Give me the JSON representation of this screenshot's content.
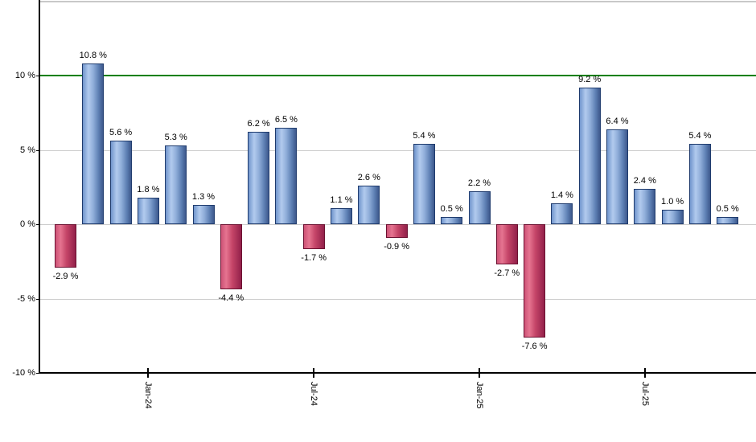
{
  "chart_data": {
    "type": "bar",
    "title": "",
    "xlabel": "",
    "ylabel": "",
    "ylim": [
      -10,
      14.9
    ],
    "grid": "horizontal",
    "legend": "none",
    "values": [
      -2.9,
      10.8,
      5.6,
      1.8,
      5.3,
      1.3,
      -4.4,
      6.2,
      6.5,
      -1.7,
      1.1,
      2.6,
      -0.9,
      5.4,
      0.5,
      2.2,
      -2.7,
      -7.6,
      1.4,
      9.2,
      6.4,
      2.4,
      1.0,
      5.4,
      0.5
    ],
    "bar_labels": [
      "-2.9 %",
      "10.8 %",
      "5.6 %",
      "1.8 %",
      "5.3 %",
      "1.3 %",
      "-4.4 %",
      "6.2 %",
      "6.5 %",
      "-1.7 %",
      "1.1 %",
      "2.6 %",
      "-0.9 %",
      "5.4 %",
      "0.5 %",
      "2.2 %",
      "-2.7 %",
      "-7.6 %",
      "1.4 %",
      "9.2 %",
      "6.4 %",
      "2.4 %",
      "1.0 %",
      "5.4 %",
      "0.5 %"
    ],
    "y_ticks": [
      {
        "value": 10,
        "label": "10 %"
      },
      {
        "value": 5,
        "label": "5 %"
      },
      {
        "value": 0,
        "label": "0 %"
      },
      {
        "value": -5,
        "label": "-5 %"
      },
      {
        "value": -10,
        "label": "-10 %"
      }
    ],
    "x_ticks": [
      {
        "bar_index": 3,
        "label": "Jan-24"
      },
      {
        "bar_index": 9,
        "label": "Jul-24"
      },
      {
        "bar_index": 15,
        "label": "Jan-25"
      },
      {
        "bar_index": 21,
        "label": "Jul-25"
      }
    ],
    "reference_line": {
      "value": 10
    }
  },
  "style": {
    "positive_bar": {
      "border": "#1f3b6d",
      "gradient": [
        "#7094cc 0%",
        "#b2cbee 28%",
        "#8fadd9 52%",
        "#5e80b4 78%",
        "#3d588c 100%"
      ]
    },
    "negative_bar": {
      "border": "#6b1030",
      "gradient": [
        "#cd5276 0%",
        "#e57490 25%",
        "#c54568 55%",
        "#92204a 100%"
      ]
    },
    "reference_line_color": "#008000",
    "grid_color": "#cccccc",
    "axis_color": "#000000",
    "top_border_color": "#c8c8c8",
    "label_color": "#000000"
  }
}
